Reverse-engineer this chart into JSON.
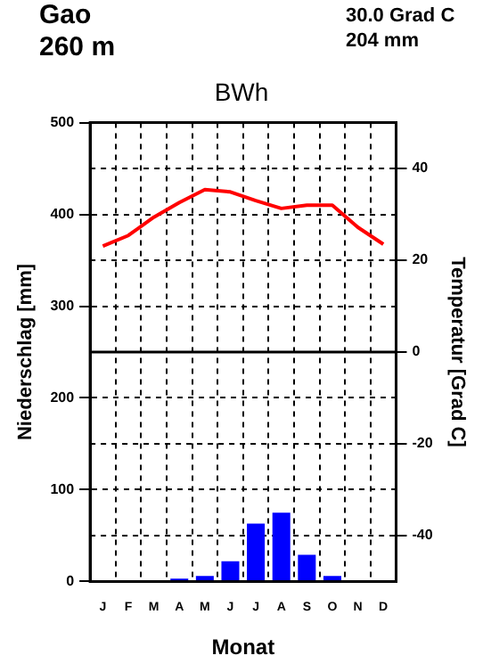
{
  "chart_data": {
    "type": "bar",
    "title": "BWh",
    "xlabel": "Monat",
    "ylabel": "Niederschlag [mm]",
    "y2label": "Temperatur [Grad C]",
    "annotations": [
      "Gao",
      "260 m",
      "30.0 Grad C",
      "204 mm"
    ],
    "categories": [
      "J",
      "F",
      "M",
      "A",
      "M",
      "J",
      "J",
      "A",
      "S",
      "O",
      "N",
      "D"
    ],
    "series": [
      {
        "color": "#0000ff",
        "values": [
          0,
          0,
          0,
          3,
          6,
          22,
          63,
          75,
          29,
          6,
          0,
          0
        ]
      },
      {
        "type": "line",
        "color": "#ff0000",
        "axis": "y2",
        "values": [
          23.1,
          25.4,
          29.4,
          32.6,
          35.4,
          34.9,
          33.0,
          31.3,
          32.0,
          32.0,
          27.2,
          23.5
        ]
      }
    ],
    "ylim": [
      0,
      500
    ],
    "yticks": [
      0,
      100,
      200,
      300,
      400,
      500
    ],
    "y2lim": [
      -50,
      50
    ],
    "y2ticks": [
      -40,
      -20,
      0,
      20,
      40
    ],
    "ref_lines": [
      {
        "axis": "y2",
        "value": 0,
        "color": "#000000"
      }
    ],
    "grid": true,
    "marker": "none",
    "line_style": "solid"
  }
}
